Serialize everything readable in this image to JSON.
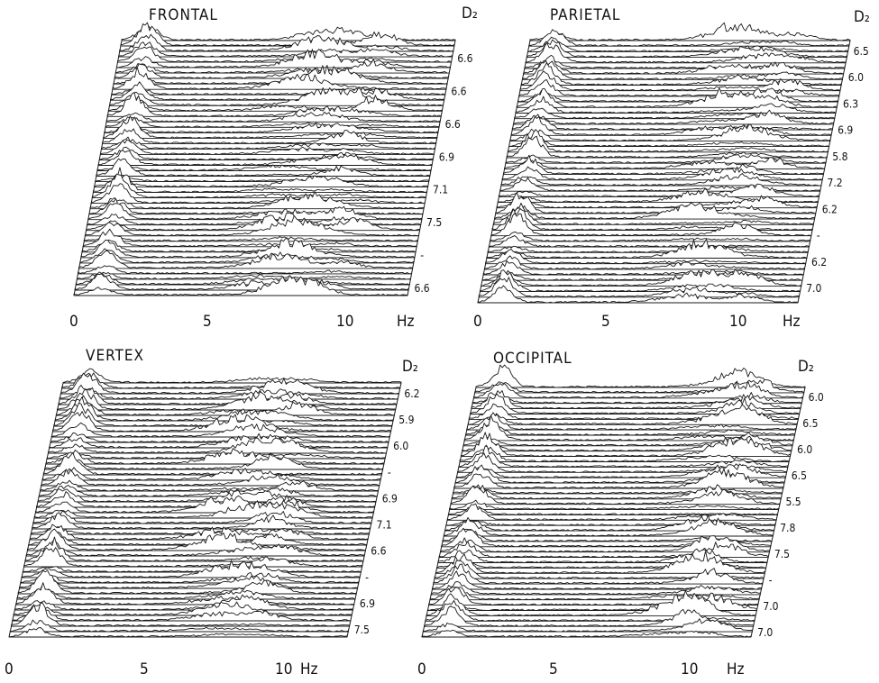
{
  "chart_data": [
    {
      "type": "area",
      "title": "FRONTAL",
      "xlabel": "Hz",
      "x_ticks": [
        "0",
        "5",
        "10"
      ],
      "xlim": [
        0,
        12.5
      ],
      "d2_header": "D₂",
      "d2_values": [
        "6.6",
        "6.6",
        "6.6",
        "6.9",
        "7.1",
        "7.5",
        "-",
        "6.6"
      ],
      "n_traces": 48,
      "peak_bands_hz": [
        1.0,
        7.5,
        9.5
      ]
    },
    {
      "type": "area",
      "title": "PARIETAL",
      "xlabel": "Hz",
      "x_ticks": [
        "0",
        "5",
        "10"
      ],
      "xlim": [
        0,
        12.5
      ],
      "d2_header": "D₂",
      "d2_values": [
        "6.5",
        "6.0",
        "6.3",
        "6.9",
        "5.8",
        "7.2",
        "6.2",
        "-",
        "6.2",
        "7.0"
      ],
      "n_traces": 48,
      "peak_bands_hz": [
        1.0,
        8.5,
        10.0
      ]
    },
    {
      "type": "area",
      "title": "VERTEX",
      "xlabel": "Hz",
      "x_ticks": [
        "0",
        "5",
        "10"
      ],
      "xlim": [
        0,
        12.5
      ],
      "d2_header": "D₂",
      "d2_values": [
        "6.2",
        "5.9",
        "6.0",
        "-",
        "6.9",
        "7.1",
        "6.6",
        "-",
        "6.9",
        "7.5"
      ],
      "n_traces": 48,
      "peak_bands_hz": [
        1.0,
        7.5,
        9.0
      ]
    },
    {
      "type": "area",
      "title": "OCCIPITAL",
      "xlabel": "Hz",
      "x_ticks": [
        "0",
        "5",
        "10"
      ],
      "xlim": [
        0,
        12.5
      ],
      "d2_header": "D₂",
      "d2_values": [
        "6.0",
        "6.5",
        "6.0",
        "6.5",
        "5.5",
        "7.8",
        "7.5",
        "-",
        "7.0",
        "7.0"
      ],
      "n_traces": 48,
      "peak_bands_hz": [
        1.0,
        10.0,
        10.5
      ]
    }
  ]
}
